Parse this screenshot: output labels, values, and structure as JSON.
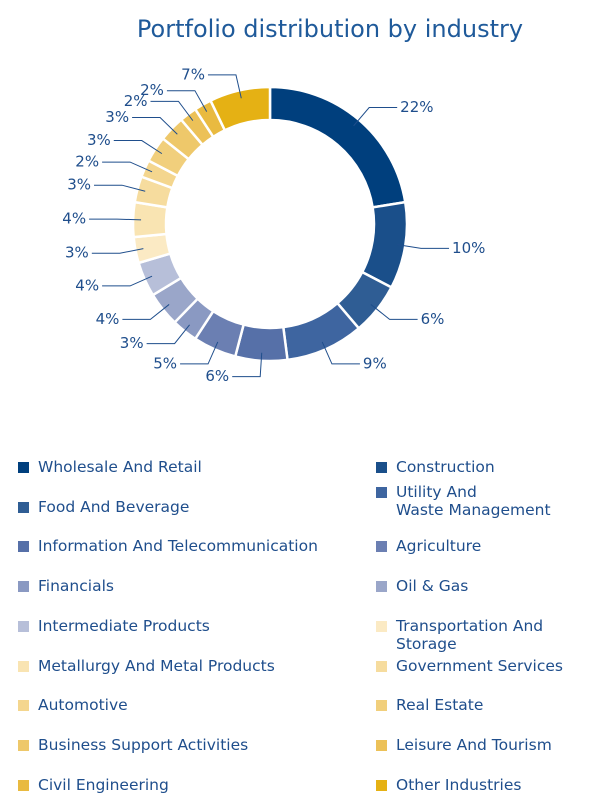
{
  "chart_data": {
    "type": "donut",
    "title": "Portfolio distribution by industry",
    "categories": [
      "Wholesale And Retail",
      "Construction",
      "Food And Beverage",
      "Utility And\nWaste Management",
      "Information And Telecommunication",
      "Agriculture",
      "Financials",
      "Oil & Gas",
      "Intermediate Products",
      "Transportation And Storage",
      "Metallurgy And Metal Products",
      "Government Services",
      "Automotive",
      "Real Estate",
      "Business Support Activities",
      "Leisure And Tourism",
      "Civil Engineering",
      "Other Industries"
    ],
    "values": [
      22,
      10,
      6,
      9,
      6,
      5,
      3,
      4,
      4,
      3,
      4,
      3,
      2,
      3,
      3,
      2,
      2,
      7
    ],
    "value_labels": [
      "22%",
      "10%",
      "6%",
      "9%",
      "6%",
      "5%",
      "3%",
      "4%",
      "4%",
      "3%",
      "4%",
      "3%",
      "2%",
      "3%",
      "3%",
      "2%",
      "2%",
      "7%"
    ],
    "colors": [
      "#003f7d",
      "#1a4f8a",
      "#2f5d94",
      "#3e65a0",
      "#5670a8",
      "#6b7fb2",
      "#8a99c2",
      "#9aa6c9",
      "#b7bfd9",
      "#fbeac4",
      "#f9e4b2",
      "#f6dc9e",
      "#f4d68e",
      "#f1cf7c",
      "#eec86a",
      "#ecc158",
      "#e9ba40",
      "#e5b114"
    ]
  }
}
